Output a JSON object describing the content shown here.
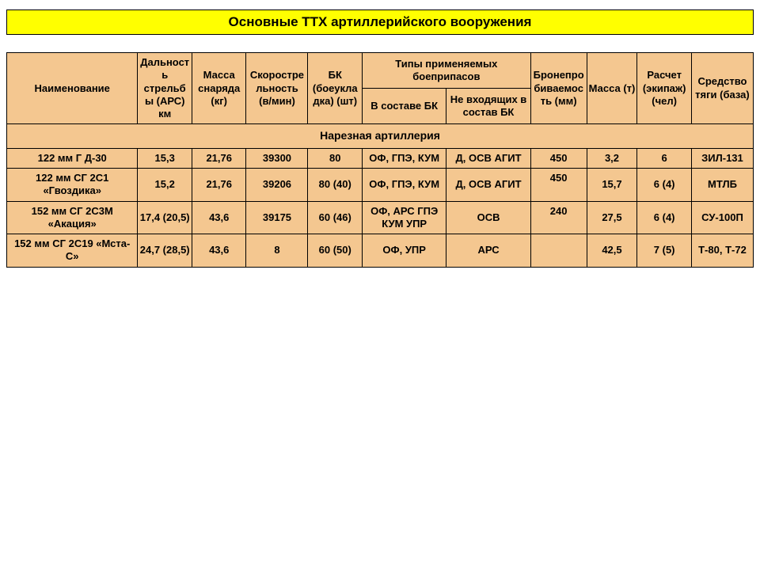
{
  "title": "Основные ТТХ артиллерийского вооружения",
  "headers": {
    "name": "Наименование",
    "range": "Дальность стрельбы (АРС) км",
    "projMass": "Масса снаряда (кг)",
    "rateOfFire": "Скорострельность (в/мин)",
    "ammoLoad": "БК (боеукладка) (шт)",
    "ammoTypes": "Типы применяемых боеприпасов",
    "ammoIn": "В составе БК",
    "ammoOut": "Не входящих в состав БК",
    "armor": "Бронепробиваемость (мм)",
    "mass": "Масса (т)",
    "crew": "Расчет (экипаж) (чел)",
    "tow": "Средство тяги (база)"
  },
  "section": "Нарезная артиллерия",
  "rows": [
    {
      "name": "122 мм Г Д-30",
      "range": "15,3",
      "projMass": "21,76",
      "rateOfFire": "39300",
      "ammoLoad": "80",
      "ammoIn": "ОФ, ГПЭ, КУМ",
      "ammoOut": "Д, ОСВ АГИТ",
      "armor": "450",
      "mass": "3,2",
      "crew": "6",
      "tow": "ЗИЛ-131"
    },
    {
      "name": "122 мм СГ 2С1 «Гвоздика»",
      "range": "15,2",
      "projMass": "21,76",
      "rateOfFire": "39206",
      "ammoLoad": "80 (40)",
      "ammoIn": "ОФ, ГПЭ, КУМ",
      "ammoOut": "Д, ОСВ АГИТ",
      "armor": "450",
      "mass": "15,7",
      "crew": "6 (4)",
      "tow": "МТЛБ"
    },
    {
      "name": "152 мм СГ 2С3М «Акация»",
      "range": "17,4 (20,5)",
      "projMass": "43,6",
      "rateOfFire": "39175",
      "ammoLoad": "60 (46)",
      "ammoIn": "ОФ, АРС ГПЭ КУМ УПР",
      "ammoOut": "ОСВ",
      "armor": "240",
      "mass": "27,5",
      "crew": "6 (4)",
      "tow": "СУ-100П"
    },
    {
      "name": "152 мм СГ 2С19 «Мста-С»",
      "range": "24,7 (28,5)",
      "projMass": "43,6",
      "rateOfFire": "8",
      "ammoLoad": "60 (50)",
      "ammoIn": "ОФ, УПР",
      "ammoOut": "АРС",
      "armor": "",
      "mass": "42,5",
      "crew": "7 (5)",
      "tow": "Т-80, Т-72"
    }
  ]
}
